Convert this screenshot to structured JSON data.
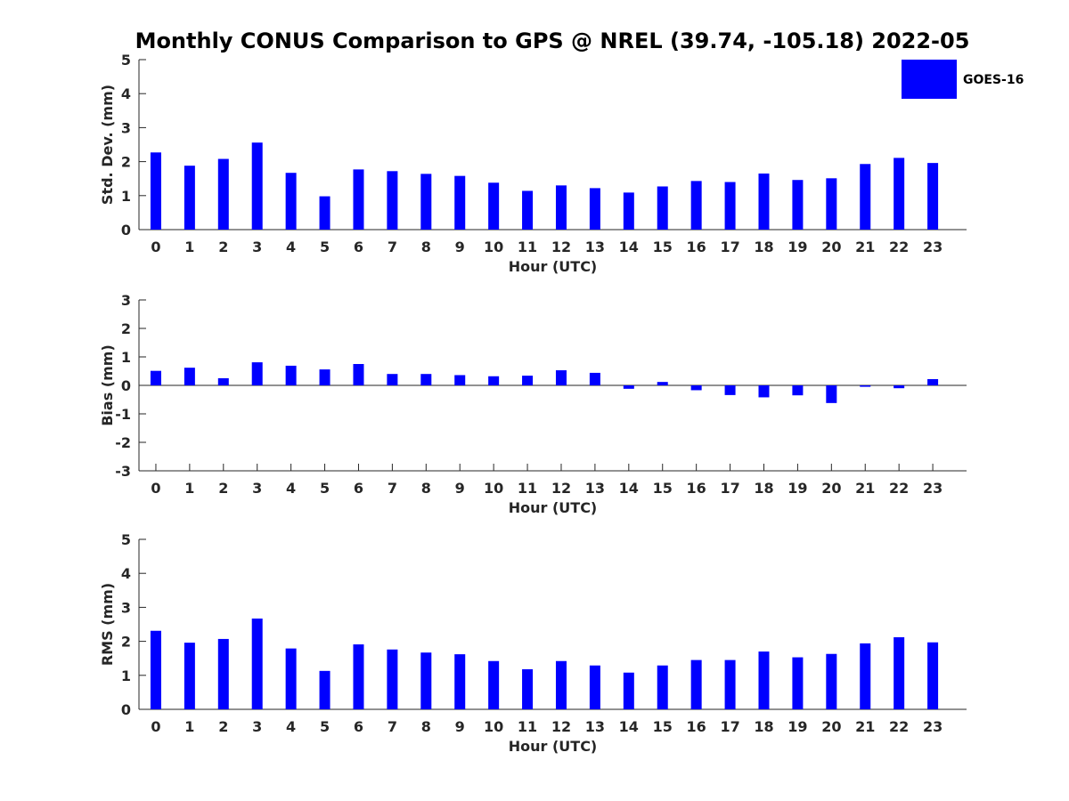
{
  "chart_data": {
    "title": "Monthly CONUS Comparison to GPS @ NREL (39.74, -105.18) 2022-05",
    "colors": {
      "bar": "#0000ff",
      "axis": "#262626",
      "background": "#ffffff"
    },
    "legend": {
      "label": "GOES-16",
      "placement": "top-right"
    },
    "grid": false,
    "panels": [
      {
        "type": "bar",
        "ylabel": "Std. Dev. (mm)",
        "xlabel": "Hour (UTC)",
        "ylim": [
          0,
          5
        ],
        "yticks": [
          0,
          1,
          2,
          3,
          4,
          5
        ],
        "categories": [
          0,
          1,
          2,
          3,
          4,
          5,
          6,
          7,
          8,
          9,
          10,
          11,
          12,
          13,
          14,
          15,
          16,
          17,
          18,
          19,
          20,
          21,
          22,
          23
        ],
        "series": [
          {
            "name": "GOES-16",
            "values": [
              2.27,
              1.88,
              2.08,
              2.56,
              1.67,
              0.98,
              1.77,
              1.72,
              1.64,
              1.58,
              1.38,
              1.14,
              1.3,
              1.22,
              1.09,
              1.27,
              1.43,
              1.4,
              1.65,
              1.46,
              1.51,
              1.93,
              2.11,
              1.96
            ]
          }
        ]
      },
      {
        "type": "bar",
        "ylabel": "Bias (mm)",
        "xlabel": "Hour (UTC)",
        "ylim": [
          -3,
          3
        ],
        "yticks": [
          -3,
          -2,
          -1,
          0,
          1,
          2,
          3
        ],
        "categories": [
          0,
          1,
          2,
          3,
          4,
          5,
          6,
          7,
          8,
          9,
          10,
          11,
          12,
          13,
          14,
          15,
          16,
          17,
          18,
          19,
          20,
          21,
          22,
          23
        ],
        "series": [
          {
            "name": "GOES-16",
            "values": [
              0.51,
              0.62,
              0.25,
              0.81,
              0.69,
              0.56,
              0.75,
              0.4,
              0.4,
              0.36,
              0.32,
              0.34,
              0.53,
              0.44,
              -0.12,
              0.12,
              -0.17,
              -0.34,
              -0.42,
              -0.35,
              -0.62,
              -0.05,
              -0.1,
              0.22
            ]
          }
        ]
      },
      {
        "type": "bar",
        "ylabel": "RMS (mm)",
        "xlabel": "Hour (UTC)",
        "ylim": [
          0,
          5
        ],
        "yticks": [
          0,
          1,
          2,
          3,
          4,
          5
        ],
        "categories": [
          0,
          1,
          2,
          3,
          4,
          5,
          6,
          7,
          8,
          9,
          10,
          11,
          12,
          13,
          14,
          15,
          16,
          17,
          18,
          19,
          20,
          21,
          22,
          23
        ],
        "series": [
          {
            "name": "GOES-16",
            "values": [
              2.31,
              1.96,
              2.07,
              2.67,
              1.79,
              1.13,
              1.91,
              1.76,
              1.67,
              1.62,
              1.42,
              1.18,
              1.42,
              1.29,
              1.08,
              1.29,
              1.45,
              1.45,
              1.7,
              1.53,
              1.63,
              1.94,
              2.12,
              1.97
            ]
          }
        ]
      }
    ]
  }
}
